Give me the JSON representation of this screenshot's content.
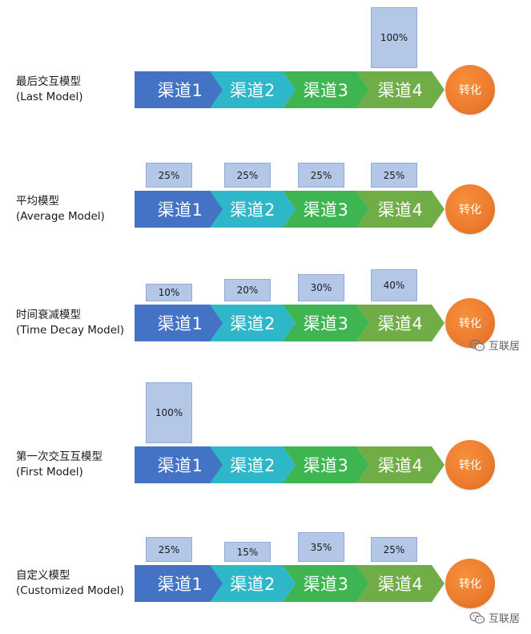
{
  "stages": [
    "渠道1",
    "渠道2",
    "渠道3",
    "渠道4"
  ],
  "conversion_label": "转化",
  "models": [
    {
      "name": "最后交互模型",
      "name_en": "(Last Model)",
      "weights": [
        null,
        null,
        null,
        "100%"
      ],
      "weight_values": [
        0,
        0,
        0,
        100
      ]
    },
    {
      "name": "平均模型",
      "name_en": "(Average Model)",
      "weights": [
        "25%",
        "25%",
        "25%",
        "25%"
      ],
      "weight_values": [
        25,
        25,
        25,
        25
      ]
    },
    {
      "name": "时间衰减模型",
      "name_en": "(Time Decay Model)",
      "weights": [
        "10%",
        "20%",
        "30%",
        "40%"
      ],
      "weight_values": [
        10,
        20,
        30,
        40
      ]
    },
    {
      "name": "第一次交互互模型",
      "name_en": "(First Model)",
      "weights": [
        "100%",
        null,
        null,
        null
      ],
      "weight_values": [
        100,
        0,
        0,
        0
      ]
    },
    {
      "name": "自定义模型",
      "name_en": "(Customized Model)",
      "weights": [
        "25%",
        "15%",
        "35%",
        "25%"
      ],
      "weight_values": [
        25,
        15,
        35,
        25
      ]
    }
  ],
  "watermarks": [
    "互联居",
    "互联居"
  ],
  "colors": {
    "stage1": "#4472c4",
    "stage2": "#2eb7c9",
    "stage3": "#3fb551",
    "stage4": "#70ad47",
    "conversion": "#ed7d31",
    "weight_box": "#b4c7e7"
  }
}
